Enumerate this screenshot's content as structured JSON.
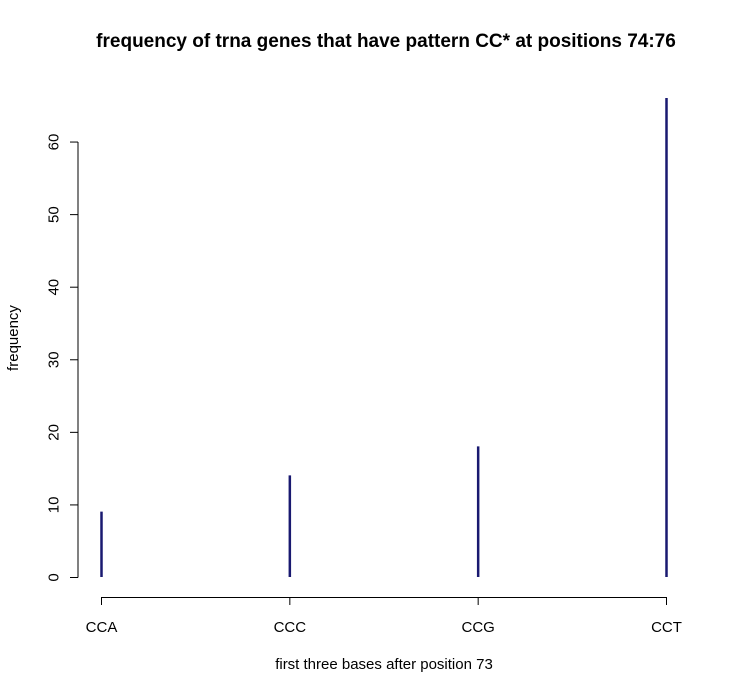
{
  "chart_data": {
    "type": "bar",
    "title": "frequency of trna genes that have pattern CC* at positions 74:76",
    "xlabel": "first three bases after position 73",
    "ylabel": "frequency",
    "categories": [
      "CCA",
      "CCC",
      "CCG",
      "CCT"
    ],
    "values": [
      9,
      14,
      18,
      66
    ],
    "ylim": [
      0,
      66
    ],
    "yticks": [
      0,
      10,
      20,
      30,
      40,
      50,
      60
    ],
    "grid": false,
    "bar_color": "#191970"
  }
}
